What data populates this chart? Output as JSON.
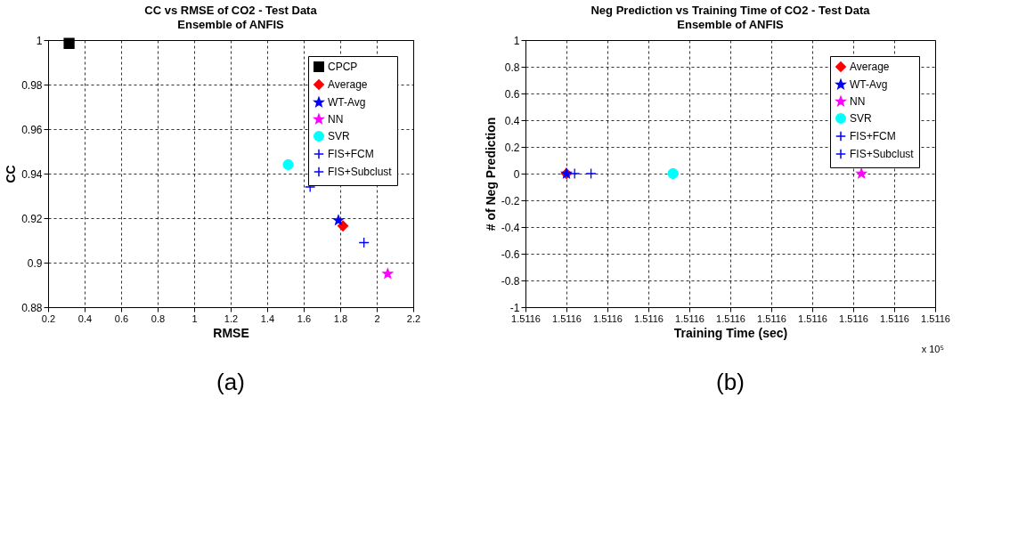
{
  "chart_data": [
    {
      "type": "scatter",
      "title": "CC vs RMSE of CO2 - Test Data",
      "subtitle": "Ensemble of ANFIS",
      "xlabel": "RMSE",
      "ylabel": "CC",
      "xlim": [
        0.2,
        2.2
      ],
      "xticks": [
        0.2,
        0.4,
        0.6,
        0.8,
        1,
        1.2,
        1.4,
        1.6,
        1.8,
        2,
        2.2
      ],
      "ylim": [
        0.88,
        1
      ],
      "yticks": [
        0.88,
        0.9,
        0.92,
        0.94,
        0.96,
        0.98,
        1
      ],
      "grid": true,
      "legend": "top right",
      "annotations": [
        "(a)"
      ],
      "series": [
        {
          "name": "CPCP",
          "color": "#000000",
          "marker": "square",
          "x": [
            0.315
          ],
          "values": [
            0.9985
          ]
        },
        {
          "name": "Average",
          "color": "#ff0000",
          "marker": "diamond",
          "x": [
            1.815
          ],
          "values": [
            0.9165
          ]
        },
        {
          "name": "WT-Avg",
          "color": "#0000ff",
          "marker": "star",
          "x": [
            1.79
          ],
          "values": [
            0.919
          ]
        },
        {
          "name": "NN",
          "color": "#ff00ff",
          "marker": "star",
          "x": [
            2.06
          ],
          "values": [
            0.895
          ]
        },
        {
          "name": "SVR",
          "color": "#00ffff",
          "marker": "circle",
          "x": [
            1.515
          ],
          "values": [
            0.944
          ]
        },
        {
          "name": "FIS+FCM",
          "color": "#0000ff",
          "marker": "cross",
          "x": [
            1.93
          ],
          "values": [
            0.909
          ]
        },
        {
          "name": "FIS+Subclust",
          "color": "#0000ff",
          "marker": "cross",
          "x": [
            1.635
          ],
          "values": [
            0.934
          ]
        }
      ]
    },
    {
      "type": "scatter",
      "title": "Neg Prediction vs Training Time of CO2 - Test Data",
      "subtitle": "Ensemble of ANFIS",
      "xlabel": "Training Time (sec)",
      "ylabel": "# of Neg Prediction",
      "xlim": [
        1.5116,
        1.51161
      ],
      "xticks": [
        {
          "value": 1.5116,
          "label": "1.5116"
        },
        {
          "value": 1.511601,
          "label": "1.5116"
        },
        {
          "value": 1.511602,
          "label": "1.5116"
        },
        {
          "value": 1.511603,
          "label": "1.5116"
        },
        {
          "value": 1.511604,
          "label": "1.5116"
        },
        {
          "value": 1.511605,
          "label": "1.5116"
        },
        {
          "value": 1.511606,
          "label": "1.5116"
        },
        {
          "value": 1.511607,
          "label": "1.5116"
        },
        {
          "value": 1.511608,
          "label": "1.5116"
        },
        {
          "value": 1.511609,
          "label": "1.5116"
        },
        {
          "value": 1.51161,
          "label": "1.5116"
        }
      ],
      "ylim": [
        -1,
        1
      ],
      "yticks": [
        -1,
        -0.8,
        -0.6,
        -0.4,
        -0.2,
        0,
        0.2,
        0.4,
        0.6,
        0.8,
        1
      ],
      "grid": true,
      "legend": "top right",
      "annotations": [
        "x 10⁵",
        "(b)"
      ],
      "series": [
        {
          "name": "Average",
          "color": "#ff0000",
          "marker": "diamond",
          "x": [
            1.511601
          ],
          "values": [
            0
          ]
        },
        {
          "name": "WT-Avg",
          "color": "#0000ff",
          "marker": "star",
          "x": [
            1.511601
          ],
          "values": [
            0
          ]
        },
        {
          "name": "NN",
          "color": "#ff00ff",
          "marker": "star",
          "x": [
            1.5116082
          ],
          "values": [
            0
          ]
        },
        {
          "name": "SVR",
          "color": "#00ffff",
          "marker": "circle",
          "x": [
            1.5116036
          ],
          "values": [
            0
          ]
        },
        {
          "name": "FIS+FCM",
          "color": "#0000ff",
          "marker": "cross",
          "x": [
            1.5116016
          ],
          "values": [
            0
          ]
        },
        {
          "name": "FIS+Subclust",
          "color": "#0000ff",
          "marker": "cross",
          "x": [
            1.5116012
          ],
          "values": [
            0
          ]
        }
      ]
    }
  ]
}
